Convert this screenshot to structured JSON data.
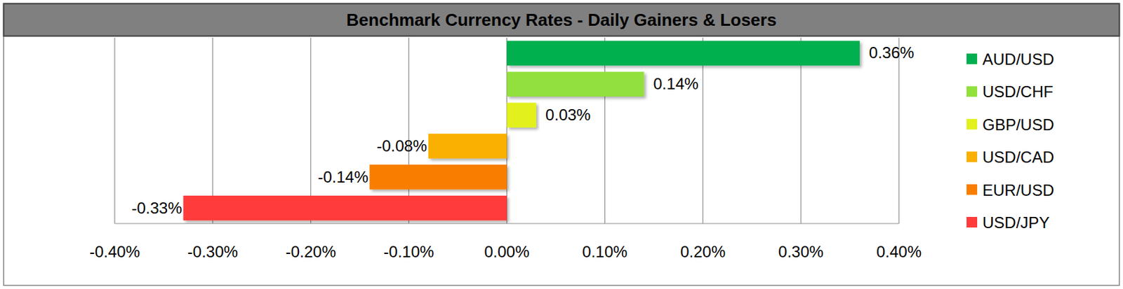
{
  "chart_data": {
    "type": "bar",
    "orientation": "horizontal",
    "title": "Benchmark Currency Rates - Daily Gainers & Losers",
    "categories": [
      "AUD/USD",
      "USD/CHF",
      "GBP/USD",
      "USD/CAD",
      "EUR/USD",
      "USD/JPY"
    ],
    "values": [
      0.36,
      0.14,
      0.03,
      -0.08,
      -0.14,
      -0.33
    ],
    "value_labels": [
      "0.36%",
      "0.14%",
      "0.03%",
      "-0.08%",
      "-0.14%",
      "-0.33%"
    ],
    "colors": [
      "#00b050",
      "#92e03c",
      "#e2f01e",
      "#f9b000",
      "#f97e00",
      "#ff3b3b"
    ],
    "xlim": [
      -0.4,
      0.4
    ],
    "xticks": [
      {
        "value": -0.4,
        "label": "-0.40%"
      },
      {
        "value": -0.3,
        "label": "-0.30%"
      },
      {
        "value": -0.2,
        "label": "-0.20%"
      },
      {
        "value": -0.1,
        "label": "-0.10%"
      },
      {
        "value": 0,
        "label": "0.00%"
      },
      {
        "value": 0.1,
        "label": "0.10%"
      },
      {
        "value": 0.2,
        "label": "0.20%"
      },
      {
        "value": 0.3,
        "label": "0.30%"
      },
      {
        "value": 0.4,
        "label": "0.40%"
      }
    ],
    "grid": true,
    "data_labels": true,
    "tick_labels": "x",
    "legend": "right"
  }
}
